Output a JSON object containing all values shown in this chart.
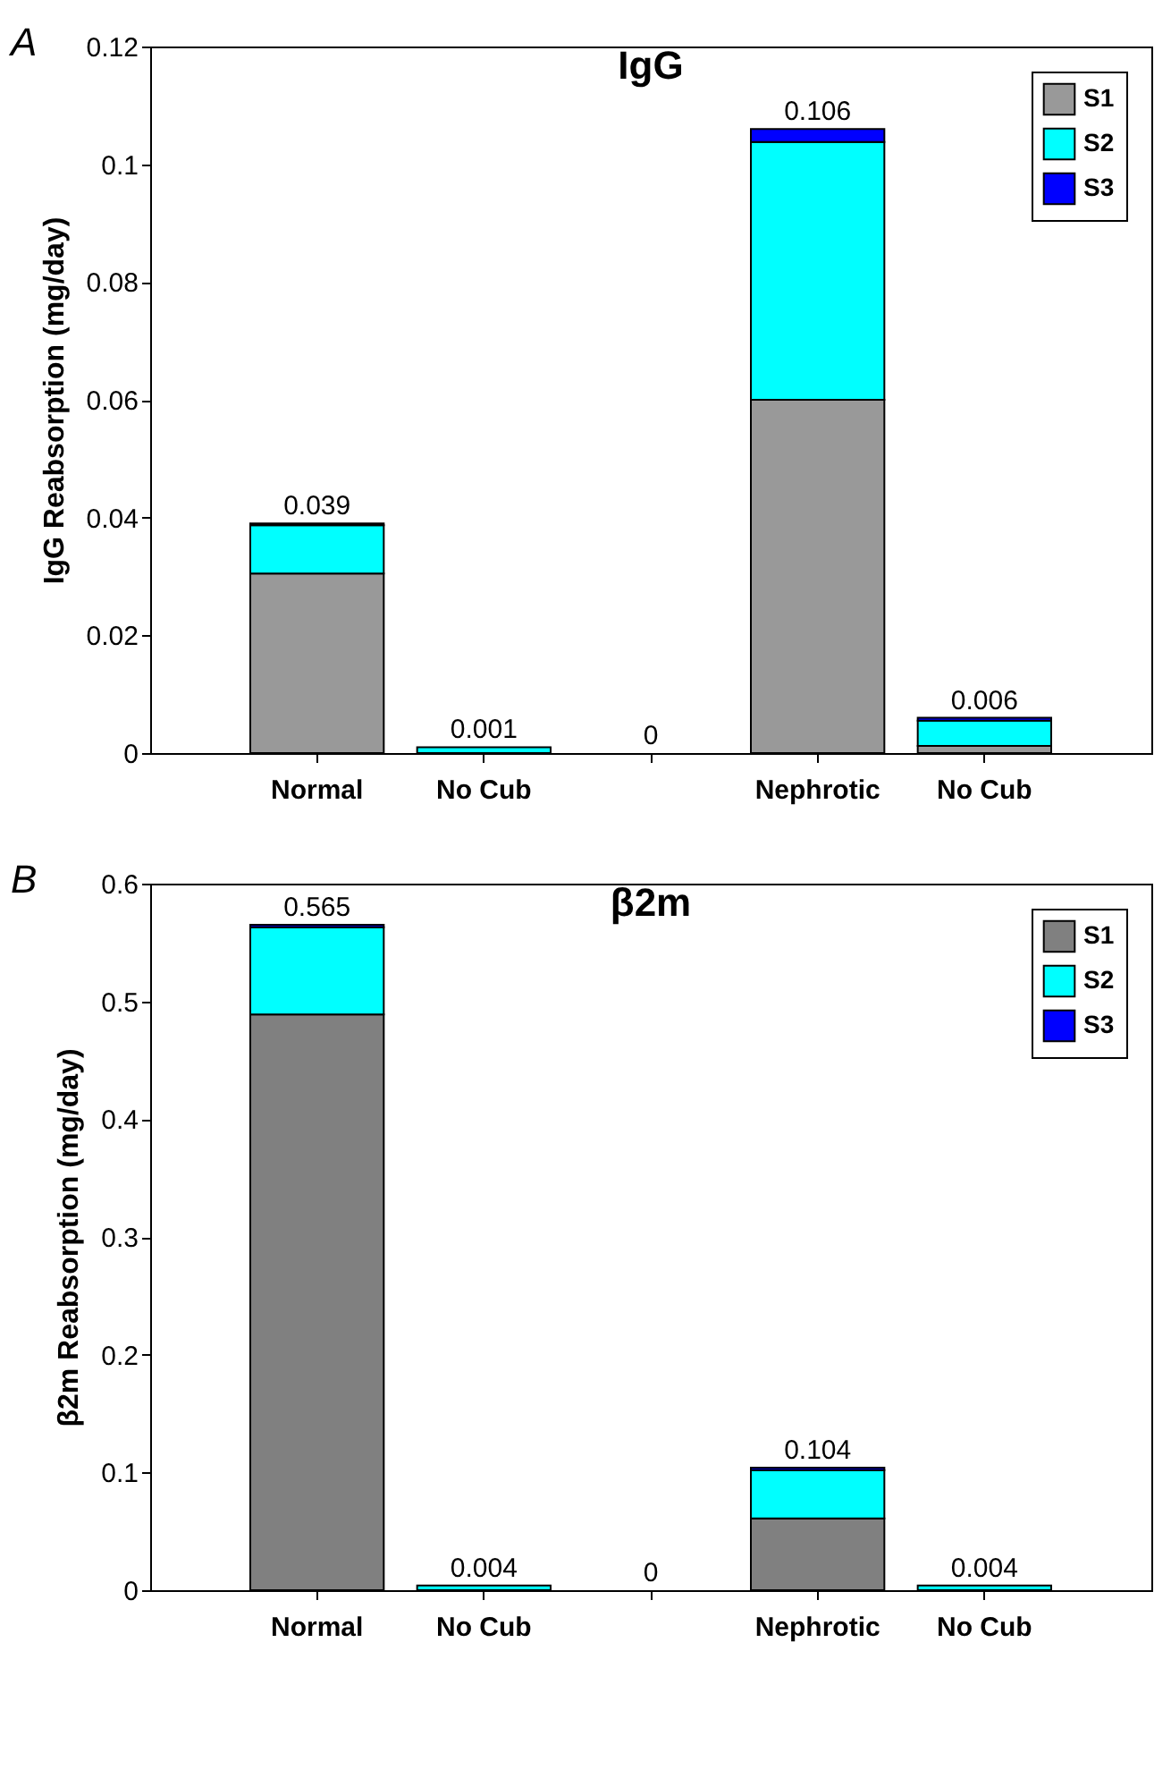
{
  "chart_data": [
    {
      "type": "bar",
      "stacked": true,
      "title": "IgG",
      "ylabel": "IgG Reabsorption (mg/day)",
      "annotations": [
        "A"
      ],
      "categories": [
        "Normal",
        "No Cub",
        null,
        "Nephrotic",
        "No Cub"
      ],
      "series": [
        {
          "name": "S1",
          "color": "#999999",
          "values": [
            0.0305,
            null,
            0,
            0.06,
            0.0012
          ]
        },
        {
          "name": "S2",
          "color": "#00ffff",
          "values": [
            0.0082,
            0.001,
            0,
            0.0438,
            0.0043
          ]
        },
        {
          "name": "S3",
          "color": "#0000ff",
          "values": [
            0.0003,
            0,
            0,
            0.0022,
            0.0005
          ]
        }
      ],
      "totals": [
        "0.039",
        "0.001",
        "0",
        "0.106",
        "0.006"
      ],
      "ylim": [
        0,
        0.12
      ],
      "yticks": [
        0,
        0.02,
        0.04,
        0.06,
        0.08,
        0.1,
        0.12
      ],
      "legend": "top right",
      "grid": false
    },
    {
      "type": "bar",
      "stacked": true,
      "title": "β2m",
      "ylabel": "β2m Reabsorption (mg/day)",
      "annotations": [
        "B"
      ],
      "categories": [
        "Normal",
        "No Cub",
        null,
        "Nephrotic",
        "No Cub"
      ],
      "series": [
        {
          "name": "S1",
          "color": "#808080",
          "values": [
            0.489,
            null,
            0,
            0.061,
            null
          ]
        },
        {
          "name": "S2",
          "color": "#00ffff",
          "values": [
            0.074,
            0.004,
            0,
            0.041,
            0.004
          ]
        },
        {
          "name": "S3",
          "color": "#0000ff",
          "values": [
            0.002,
            0,
            0,
            0.002,
            0
          ]
        }
      ],
      "totals": [
        "0.565",
        "0.004",
        "0",
        "0.104",
        "0.004"
      ],
      "ylim": [
        0,
        0.6
      ],
      "yticks": [
        0,
        0.1,
        0.2,
        0.3,
        0.4,
        0.5,
        0.6
      ],
      "legend": "top right",
      "grid": false
    }
  ]
}
